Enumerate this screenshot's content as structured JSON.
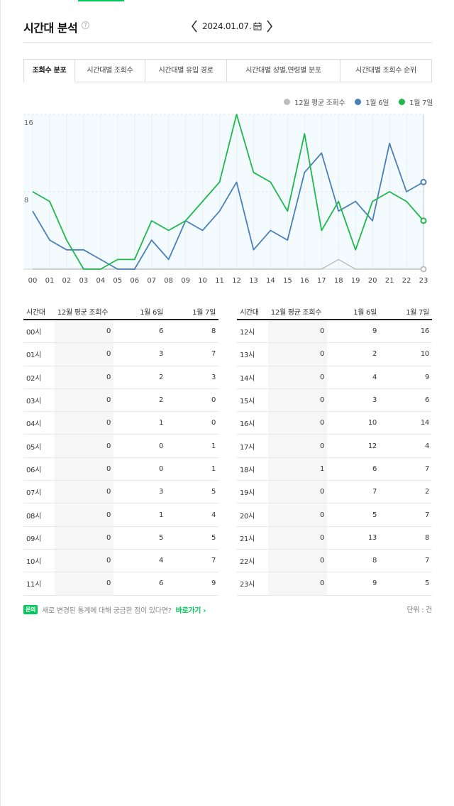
{
  "header": {
    "title": "시간대 분석",
    "help": "?",
    "date": "2024.01.07."
  },
  "tabs": [
    {
      "label": "조회수 분포",
      "active": true
    },
    {
      "label": "시간대별 조회수",
      "active": false
    },
    {
      "label": "시간대별 유입 경로",
      "active": false
    },
    {
      "label": "시간대별 성별,연령별 분포",
      "active": false
    },
    {
      "label": "시간대별 조회수 순위",
      "active": false
    }
  ],
  "legend": [
    {
      "label": "12월 평균 조회수",
      "color": "#bdbdbd"
    },
    {
      "label": "1월 6일",
      "color": "#4a7fb8"
    },
    {
      "label": "1월 7일",
      "color": "#1fb84a"
    }
  ],
  "chart_data": {
    "type": "line",
    "x": [
      "00",
      "01",
      "02",
      "03",
      "04",
      "05",
      "06",
      "07",
      "08",
      "09",
      "10",
      "11",
      "12",
      "13",
      "14",
      "15",
      "16",
      "17",
      "18",
      "19",
      "20",
      "21",
      "22",
      "23"
    ],
    "y_ticks": [
      "16",
      "8"
    ],
    "ylim": [
      0,
      16
    ],
    "series": [
      {
        "name": "12월 평균 조회수",
        "color": "#bdbdbd",
        "values": [
          0,
          0,
          0,
          0,
          0,
          0,
          0,
          0,
          0,
          0,
          0,
          0,
          0,
          0,
          0,
          0,
          0,
          0,
          1,
          0,
          0,
          0,
          0,
          0
        ]
      },
      {
        "name": "1월 6일",
        "color": "#4a7fb8",
        "values": [
          6,
          3,
          2,
          2,
          1,
          0,
          0,
          3,
          1,
          5,
          4,
          6,
          9,
          2,
          4,
          3,
          10,
          12,
          6,
          7,
          5,
          13,
          8,
          9
        ]
      },
      {
        "name": "1월 7일",
        "color": "#1fb84a",
        "values": [
          8,
          7,
          3,
          0,
          0,
          1,
          1,
          5,
          4,
          5,
          7,
          9,
          16,
          10,
          9,
          6,
          14,
          4,
          7,
          2,
          7,
          8,
          7,
          5
        ]
      }
    ]
  },
  "table": {
    "headers": [
      "시간대",
      "12월 평균 조회수",
      "1월 6일",
      "1월 7일"
    ],
    "left": [
      [
        "00시",
        "0",
        "6",
        "8"
      ],
      [
        "01시",
        "0",
        "3",
        "7"
      ],
      [
        "02시",
        "0",
        "2",
        "3"
      ],
      [
        "03시",
        "0",
        "2",
        "0"
      ],
      [
        "04시",
        "0",
        "1",
        "0"
      ],
      [
        "05시",
        "0",
        "0",
        "1"
      ],
      [
        "06시",
        "0",
        "0",
        "1"
      ],
      [
        "07시",
        "0",
        "3",
        "5"
      ],
      [
        "08시",
        "0",
        "1",
        "4"
      ],
      [
        "09시",
        "0",
        "5",
        "5"
      ],
      [
        "10시",
        "0",
        "4",
        "7"
      ],
      [
        "11시",
        "0",
        "6",
        "9"
      ]
    ],
    "right": [
      [
        "12시",
        "0",
        "9",
        "16"
      ],
      [
        "13시",
        "0",
        "2",
        "10"
      ],
      [
        "14시",
        "0",
        "4",
        "9"
      ],
      [
        "15시",
        "0",
        "3",
        "6"
      ],
      [
        "16시",
        "0",
        "10",
        "14"
      ],
      [
        "17시",
        "0",
        "12",
        "4"
      ],
      [
        "18시",
        "1",
        "6",
        "7"
      ],
      [
        "19시",
        "0",
        "7",
        "2"
      ],
      [
        "20시",
        "0",
        "5",
        "7"
      ],
      [
        "21시",
        "0",
        "13",
        "8"
      ],
      [
        "22시",
        "0",
        "8",
        "7"
      ],
      [
        "23시",
        "0",
        "9",
        "5"
      ]
    ]
  },
  "footer": {
    "badge": "문의",
    "text": "새로 변경된 통계에 대해 궁금한 점이 있다면?",
    "link": "바로가기",
    "unit": "단위 : 건"
  }
}
